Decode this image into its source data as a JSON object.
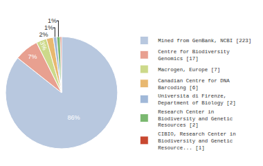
{
  "chart_data": {
    "type": "pie",
    "categories": [
      "Mined from GenBank, NCBI [223]",
      "Centre for Biodiversity\nGenomics [17]",
      "Macrogen, Europe [7]",
      "Canadian Centre for DNA\nBarcoding [6]",
      "Universita di Firenze,\nDepartment of Biology [2]",
      "Research Center in\nBiodiversity and Genetic\nResources [2]",
      "CIBIO, Research Center in\nBiodiversity and Genetic\nResource... [1]"
    ],
    "values": [
      86,
      7,
      3,
      2,
      1,
      1,
      0.39
    ],
    "value_labels": [
      "86%",
      "7%",
      "3%",
      "2%",
      "1%",
      "1%",
      null
    ],
    "colors": [
      "#b8c8df",
      "#e8a090",
      "#ccd98a",
      "#e8b870",
      "#a0b8d8",
      "#7ab870",
      "#c84830"
    ],
    "data_labels": true,
    "legend": "right"
  }
}
